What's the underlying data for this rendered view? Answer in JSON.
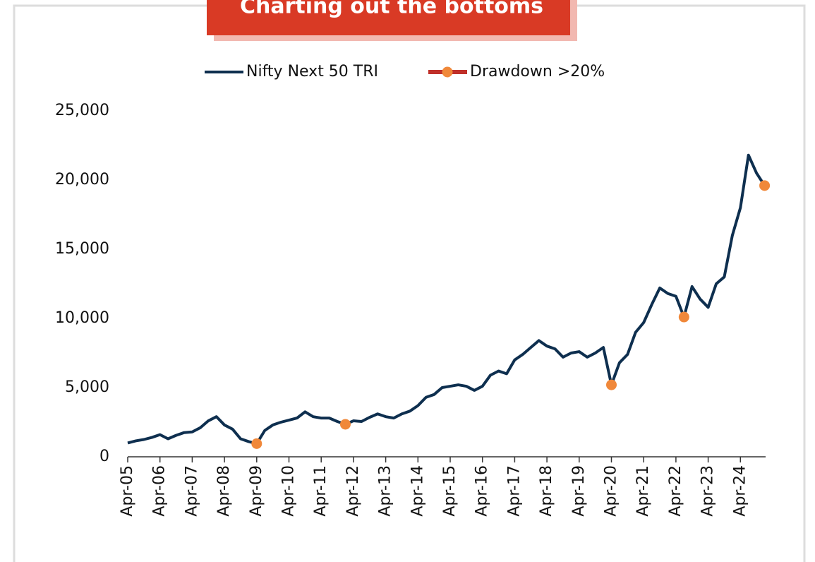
{
  "chart_data": {
    "type": "line",
    "title": "Charting out the bottoms",
    "categories": [
      "Apr-05",
      null,
      null,
      null,
      "Apr-06",
      null,
      null,
      null,
      "Apr-07",
      null,
      null,
      null,
      "Apr-08",
      null,
      null,
      null,
      "Apr-09",
      null,
      null,
      null,
      "Apr-10",
      null,
      null,
      null,
      "Apr-11",
      null,
      null,
      null,
      "Apr-12",
      null,
      null,
      null,
      "Apr-13",
      null,
      null,
      null,
      "Apr-14",
      null,
      null,
      null,
      "Apr-15",
      null,
      null,
      null,
      "Apr-16",
      null,
      null,
      null,
      "Apr-17",
      null,
      null,
      null,
      "Apr-18",
      null,
      null,
      null,
      "Apr-19",
      null,
      null,
      null,
      "Apr-20",
      null,
      null,
      null,
      "Apr-21",
      null,
      null,
      null,
      "Apr-22",
      null,
      null,
      null,
      "Apr-23",
      null,
      null,
      null,
      "Apr-24",
      null,
      null,
      null
    ],
    "series": [
      {
        "name": "Nifty Next 50 TRI",
        "color": "#0e2f4f",
        "values": [
          1000,
          1150,
          1250,
          1400,
          1600,
          1300,
          1550,
          1750,
          1800,
          2100,
          2600,
          2900,
          2300,
          2000,
          1300,
          1100,
          950,
          1900,
          2300,
          2500,
          2650,
          2800,
          3250,
          2900,
          2800,
          2800,
          2550,
          2350,
          2600,
          2550,
          2850,
          3100,
          2900,
          2800,
          3100,
          3300,
          3700,
          4300,
          4500,
          5000,
          5100,
          5200,
          5100,
          4800,
          5100,
          5900,
          6200,
          6000,
          7000,
          7400,
          7900,
          8400,
          8000,
          7800,
          7200,
          7500,
          7600,
          7200,
          7500,
          7900,
          5200,
          6800,
          7400,
          9000,
          9700,
          11000,
          12200,
          11800,
          11600,
          10100,
          12300,
          11400,
          10800,
          12500,
          13000,
          16000,
          18000,
          21800,
          20500,
          19600
        ]
      },
      {
        "name": "Drawdown >20%",
        "color": "#f0883a",
        "line_color": "#c0302a",
        "values": [
          null,
          null,
          null,
          null,
          null,
          null,
          null,
          null,
          null,
          null,
          null,
          null,
          null,
          null,
          null,
          null,
          950,
          null,
          null,
          null,
          null,
          null,
          null,
          null,
          null,
          null,
          null,
          2350,
          null,
          null,
          null,
          null,
          null,
          null,
          null,
          null,
          null,
          null,
          null,
          null,
          null,
          null,
          null,
          null,
          null,
          null,
          null,
          null,
          null,
          null,
          null,
          null,
          null,
          null,
          null,
          null,
          null,
          null,
          null,
          null,
          5200,
          null,
          null,
          null,
          null,
          null,
          null,
          null,
          null,
          10100,
          null,
          null,
          null,
          null,
          null,
          null,
          null,
          null,
          null,
          19600
        ]
      }
    ],
    "ylim": [
      0,
      25000
    ],
    "yticks": [
      0,
      {
        "value": 5000,
        "label": "5,000"
      },
      {
        "value": 10000,
        "label": "10,000"
      },
      {
        "value": 15000,
        "label": "15,000"
      },
      {
        "value": 20000,
        "label": "20,000"
      },
      {
        "value": 25000,
        "label": "25,000"
      }
    ]
  }
}
